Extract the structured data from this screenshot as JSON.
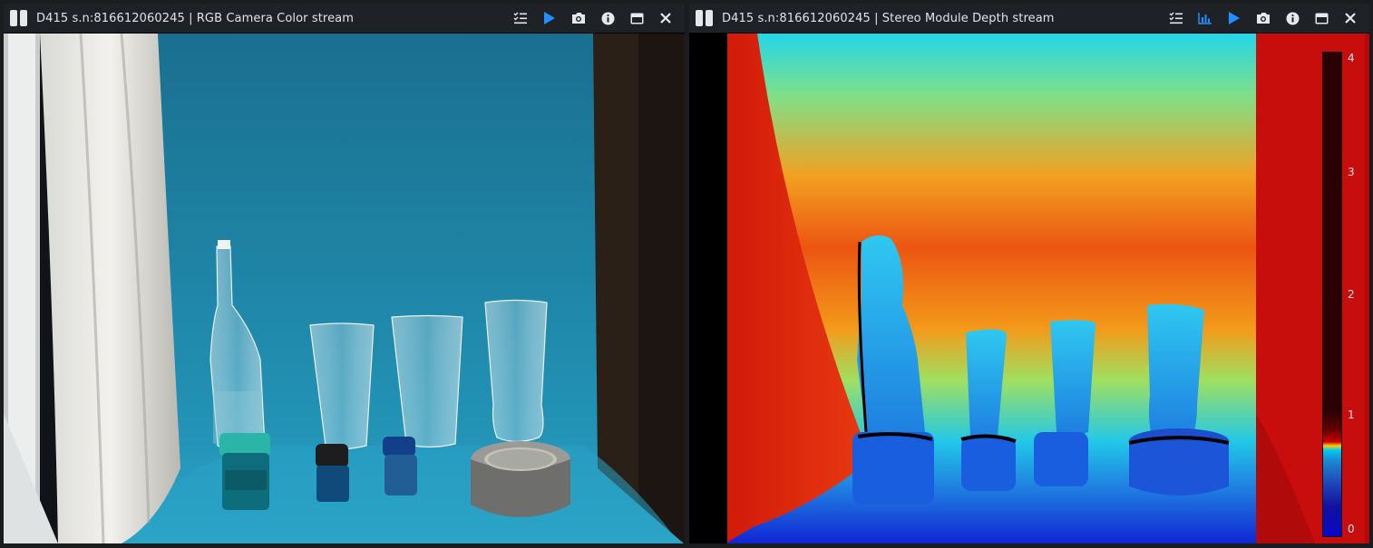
{
  "panels": [
    {
      "title": "D415 s.n:816612060245 | RGB Camera Color stream",
      "tools": [
        "options-icon",
        "play-icon",
        "camera-icon",
        "info-icon",
        "maximize-icon",
        "close-icon"
      ]
    },
    {
      "title": "D415 s.n:816612060245 | Stereo Module Depth stream",
      "tools": [
        "options-icon",
        "histogram-icon",
        "play-icon",
        "camera-icon",
        "info-icon",
        "maximize-icon",
        "close-icon"
      ],
      "colorbar": {
        "ticks": [
          "4",
          "3",
          "2",
          "1",
          "0"
        ]
      }
    }
  ],
  "colors": {
    "accent": "#1e90ff",
    "titlebar": "#1e2226",
    "backdrop_blue": "#1f86a8"
  }
}
